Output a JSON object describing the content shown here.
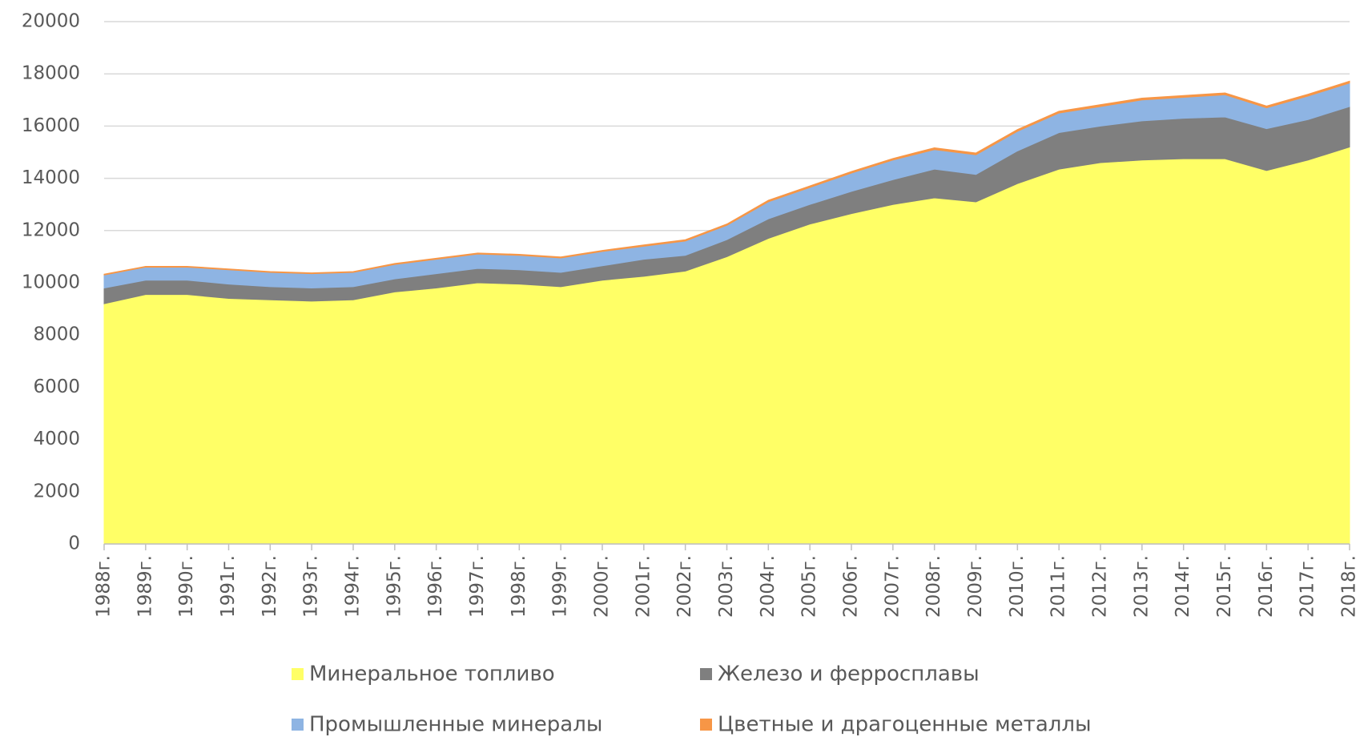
{
  "chart_data": {
    "type": "stacked_area",
    "categories": [
      "1988г.",
      "1989г.",
      "1990г.",
      "1991г.",
      "1992г.",
      "1993г.",
      "1994г.",
      "1995г.",
      "1996г.",
      "1997г.",
      "1998г.",
      "1999г.",
      "2000г.",
      "2001г.",
      "2002г.",
      "2003г.",
      "2004г.",
      "2005г.",
      "2006г.",
      "2007г.",
      "2008г.",
      "2009г.",
      "2010г.",
      "2011г.",
      "2012г.",
      "2013г.",
      "2014г.",
      "2015г.",
      "2016г.",
      "2017г.",
      "2018г."
    ],
    "series": [
      {
        "name": "Минеральное топливо",
        "color": "#ffff66",
        "values": [
          9200,
          9550,
          9550,
          9400,
          9350,
          9300,
          9350,
          9650,
          9800,
          10000,
          9950,
          9850,
          10100,
          10250,
          10450,
          11000,
          11700,
          12250,
          12650,
          13000,
          13250,
          13100,
          13800,
          14350,
          14600,
          14700,
          14750,
          14750,
          14300,
          14700,
          15200
        ]
      },
      {
        "name": "Железо и ферросплавы",
        "color": "#7f7f7f",
        "values": [
          600,
          550,
          550,
          550,
          500,
          500,
          500,
          500,
          550,
          550,
          550,
          550,
          550,
          650,
          600,
          650,
          750,
          750,
          850,
          950,
          1100,
          1050,
          1250,
          1400,
          1400,
          1500,
          1550,
          1600,
          1600,
          1550,
          1550
        ]
      },
      {
        "name": "Промышленные минералы",
        "color": "#8eb4e3",
        "values": [
          500,
          500,
          500,
          550,
          550,
          550,
          550,
          550,
          550,
          550,
          550,
          550,
          550,
          500,
          550,
          550,
          650,
          650,
          700,
          750,
          750,
          750,
          750,
          750,
          750,
          800,
          800,
          850,
          800,
          900,
          900
        ]
      },
      {
        "name": "Цветные и драгоценные металлы",
        "color": "#f79646",
        "values": [
          30,
          30,
          30,
          30,
          30,
          30,
          30,
          40,
          40,
          40,
          40,
          40,
          40,
          50,
          50,
          50,
          60,
          60,
          60,
          60,
          70,
          70,
          70,
          70,
          70,
          70,
          70,
          70,
          70,
          70,
          70
        ]
      }
    ],
    "ylim": [
      0,
      20000
    ],
    "yticks": [
      0,
      2000,
      4000,
      6000,
      8000,
      10000,
      12000,
      14000,
      16000,
      18000,
      20000
    ],
    "grid": true
  }
}
